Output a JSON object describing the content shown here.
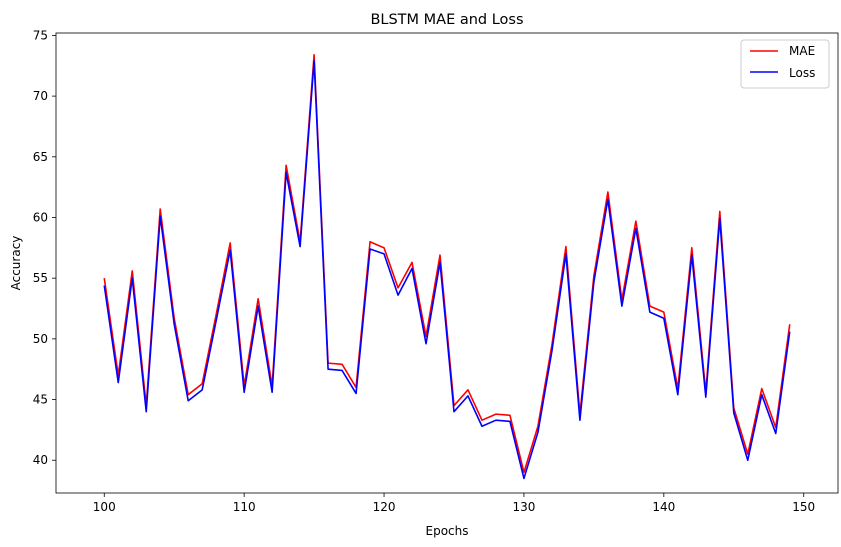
{
  "chart_data": {
    "type": "line",
    "title": "BLSTM MAE and Loss",
    "xlabel": "Epochs",
    "ylabel": "Accuracy",
    "xlim": [
      96.55,
      152.45
    ],
    "ylim": [
      37.3,
      75.2
    ],
    "xticks": [
      100,
      110,
      120,
      130,
      140,
      150
    ],
    "yticks": [
      40,
      45,
      50,
      55,
      60,
      65,
      70,
      75
    ],
    "grid": false,
    "legend_position": "top-right",
    "x": [
      100,
      101,
      102,
      103,
      104,
      105,
      106,
      107,
      108,
      109,
      110,
      111,
      112,
      113,
      114,
      115,
      116,
      117,
      118,
      119,
      120,
      121,
      122,
      123,
      124,
      125,
      126,
      127,
      128,
      129,
      130,
      131,
      132,
      133,
      134,
      135,
      136,
      137,
      138,
      139,
      140,
      141,
      142,
      143,
      144,
      145,
      146,
      147,
      148,
      149
    ],
    "series": [
      {
        "name": "MAE",
        "color": "#ff0000",
        "values": [
          55.0,
          47.0,
          55.6,
          44.5,
          60.7,
          51.7,
          45.4,
          46.3,
          52.0,
          57.9,
          46.1,
          53.3,
          46.1,
          64.3,
          58.0,
          73.4,
          48.0,
          47.9,
          46.0,
          58.0,
          57.5,
          54.2,
          56.3,
          50.2,
          56.9,
          44.5,
          45.8,
          43.3,
          43.8,
          43.7,
          39.0,
          42.8,
          49.5,
          57.6,
          43.8,
          55.2,
          62.1,
          53.2,
          59.7,
          52.7,
          52.2,
          45.9,
          57.5,
          45.6,
          60.5,
          44.3,
          40.5,
          45.9,
          42.7,
          51.2
        ]
      },
      {
        "name": "Loss",
        "color": "#0000ff",
        "values": [
          54.4,
          46.4,
          55.0,
          44.0,
          60.1,
          51.2,
          44.9,
          45.8,
          51.5,
          57.3,
          45.6,
          52.7,
          45.6,
          63.7,
          57.6,
          72.9,
          47.5,
          47.4,
          45.5,
          57.4,
          57.0,
          53.6,
          55.8,
          49.6,
          56.3,
          44.0,
          45.3,
          42.8,
          43.3,
          43.2,
          38.5,
          42.3,
          49.0,
          57.0,
          43.3,
          54.7,
          61.5,
          52.7,
          59.1,
          52.2,
          51.7,
          45.4,
          56.9,
          45.2,
          59.9,
          43.9,
          40.0,
          45.4,
          42.2,
          50.6
        ]
      }
    ]
  }
}
